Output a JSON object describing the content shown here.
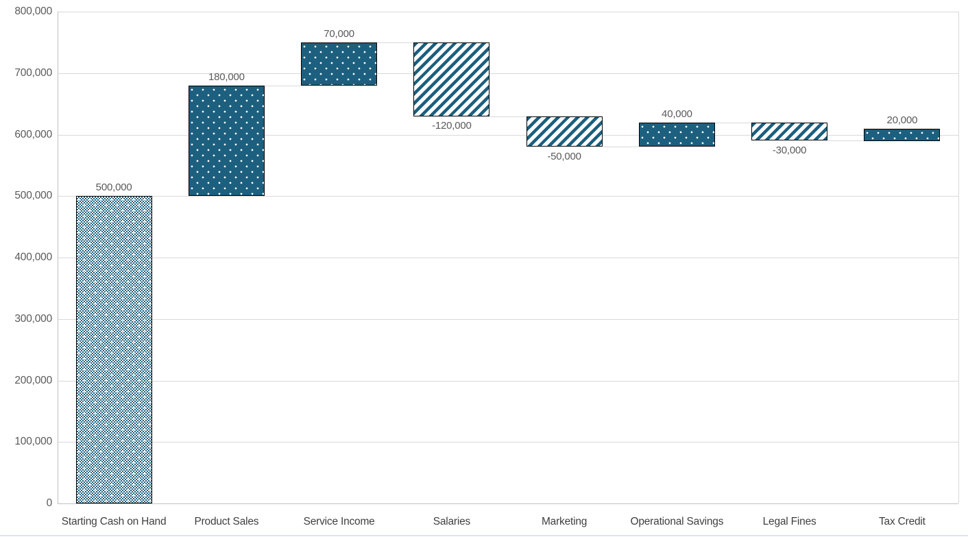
{
  "chart_data": {
    "type": "bar",
    "subtype": "waterfall",
    "title": "",
    "xlabel": "",
    "ylabel": "",
    "categories": [
      "Starting Cash on Hand",
      "Product Sales",
      "Service Income",
      "Salaries",
      "Marketing",
      "Operational Savings",
      "Legal Fines",
      "Tax Credit"
    ],
    "values": [
      500000,
      180000,
      70000,
      -120000,
      -50000,
      40000,
      -30000,
      20000
    ],
    "cumulative_levels": [
      500000,
      680000,
      750000,
      630000,
      580000,
      620000,
      590000,
      610000
    ],
    "data_labels": [
      "500,000",
      "180,000",
      "70,000",
      "-120,000",
      "-50,000",
      "40,000",
      "-30,000",
      "20,000"
    ],
    "bar_patterns": [
      "checkerboard",
      "white-dots",
      "white-dots",
      "diagonal-stripes",
      "diagonal-stripes",
      "white-dots",
      "diagonal-stripes",
      "white-dots"
    ],
    "first_bar_is_total": true,
    "ylim": [
      0,
      800000
    ],
    "yticks": [
      0,
      100000,
      200000,
      300000,
      400000,
      500000,
      600000,
      700000,
      800000
    ],
    "ytick_labels": [
      "0",
      "100,000",
      "200,000",
      "300,000",
      "400,000",
      "500,000",
      "600,000",
      "700,000",
      "800,000"
    ],
    "grid": true,
    "legend": "none",
    "connector_lines": true,
    "colors": {
      "bar_fill": "#1c5f7e",
      "bar_border": "#000000",
      "gridline": "#d9d9d9",
      "axis_line": "#bfbfbf",
      "tick_label": "#595959",
      "data_label": "#595959",
      "category_label": "#3f3f3f",
      "background": "#ffffff"
    }
  }
}
